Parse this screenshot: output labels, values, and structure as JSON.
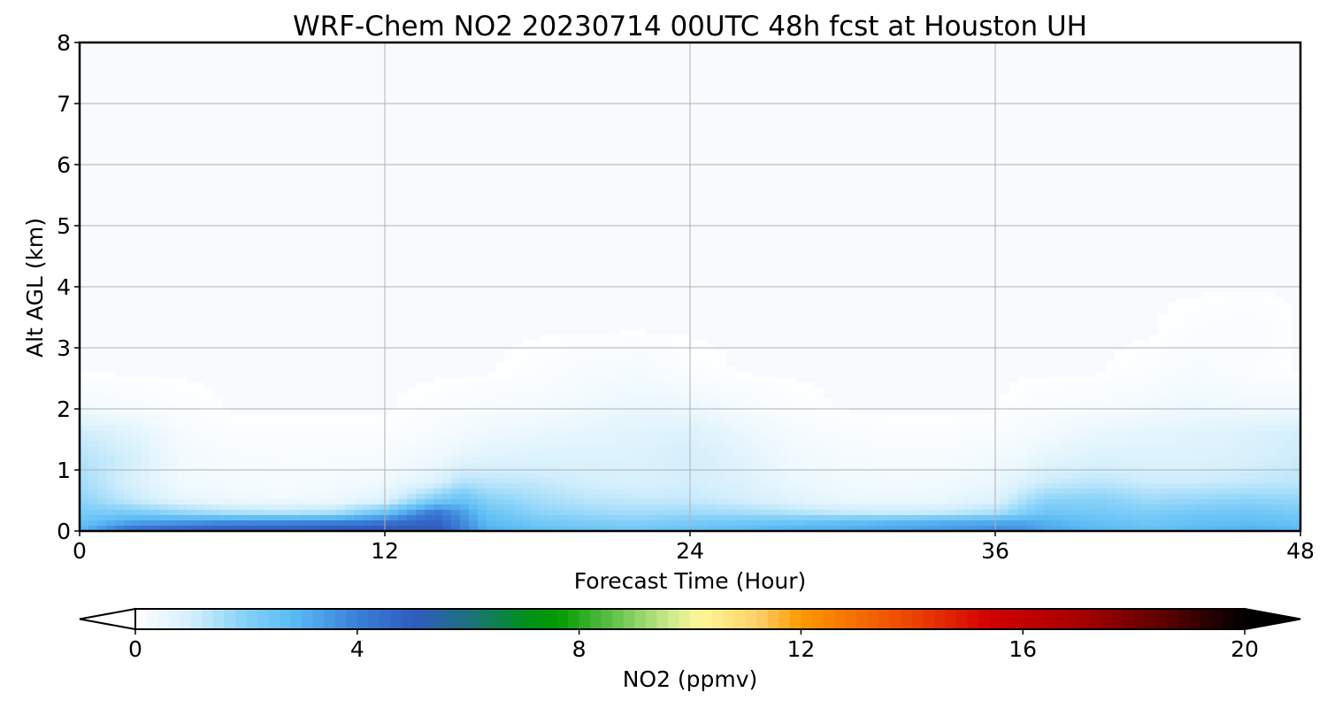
{
  "chart_data": {
    "type": "heatmap",
    "title": "WRF-Chem NO2  20230714 00UTC 48h fcst at Houston UH",
    "xlabel": "Forecast Time (Hour)",
    "ylabel": "Alt AGL (km)",
    "xlim": [
      0,
      48
    ],
    "ylim": [
      0,
      8
    ],
    "xticks": [
      0,
      12,
      24,
      36,
      48
    ],
    "yticks": [
      0,
      1,
      2,
      3,
      4,
      5,
      6,
      7,
      8
    ],
    "grid": true,
    "x_hours": [
      0,
      2,
      4,
      6,
      8,
      10,
      12,
      14,
      15,
      16,
      18,
      20,
      22,
      24,
      26,
      28,
      30,
      32,
      34,
      36,
      37,
      38,
      40,
      42,
      44,
      46,
      48
    ],
    "profiles": [
      {
        "altitude_km": 0.05,
        "values": [
          2.8,
          4.2,
          4.6,
          4.8,
          4.8,
          4.9,
          5.0,
          5.2,
          4.0,
          3.0,
          2.6,
          2.4,
          2.3,
          2.5,
          2.7,
          2.9,
          3.0,
          3.2,
          3.4,
          3.6,
          3.6,
          3.2,
          2.8,
          2.6,
          2.8,
          3.0,
          2.8
        ]
      },
      {
        "altitude_km": 0.15,
        "values": [
          2.5,
          3.2,
          3.4,
          3.6,
          3.7,
          3.8,
          4.2,
          4.8,
          3.8,
          2.8,
          2.3,
          2.1,
          2.0,
          2.2,
          2.3,
          2.4,
          2.6,
          2.8,
          3.0,
          3.1,
          3.2,
          3.0,
          2.6,
          2.4,
          2.6,
          2.7,
          2.5
        ]
      },
      {
        "altitude_km": 0.3,
        "values": [
          2.2,
          2.2,
          1.8,
          1.5,
          1.4,
          1.5,
          2.5,
          4.2,
          3.5,
          2.5,
          1.9,
          1.7,
          1.6,
          1.7,
          1.6,
          1.4,
          1.2,
          1.1,
          1.2,
          1.5,
          2.0,
          2.4,
          2.3,
          2.1,
          2.3,
          2.4,
          2.2
        ]
      },
      {
        "altitude_km": 0.5,
        "values": [
          1.9,
          1.2,
          0.6,
          0.4,
          0.35,
          0.4,
          0.8,
          2.2,
          2.6,
          2.0,
          1.6,
          1.3,
          1.2,
          1.2,
          1.0,
          0.7,
          0.5,
          0.45,
          0.5,
          0.8,
          1.4,
          1.9,
          2.0,
          1.7,
          1.8,
          1.9,
          1.8
        ]
      },
      {
        "altitude_km": 0.8,
        "values": [
          1.6,
          0.9,
          0.35,
          0.25,
          0.2,
          0.25,
          0.35,
          0.8,
          1.4,
          1.3,
          1.2,
          1.0,
          0.9,
          1.0,
          0.8,
          0.5,
          0.35,
          0.3,
          0.35,
          0.5,
          0.8,
          1.1,
          1.3,
          1.1,
          1.1,
          1.2,
          1.3
        ]
      },
      {
        "altitude_km": 1.2,
        "values": [
          1.4,
          1.0,
          0.3,
          0.2,
          0.15,
          0.15,
          0.2,
          0.4,
          0.6,
          0.7,
          0.8,
          0.8,
          0.8,
          1.0,
          0.7,
          0.35,
          0.25,
          0.2,
          0.2,
          0.3,
          0.4,
          0.6,
          0.8,
          0.8,
          0.8,
          0.9,
          1.1
        ]
      },
      {
        "altitude_km": 1.6,
        "values": [
          1.1,
          0.7,
          0.2,
          0.1,
          0.1,
          0.1,
          0.1,
          0.2,
          0.3,
          0.4,
          0.5,
          0.6,
          0.7,
          0.8,
          0.5,
          0.25,
          0.15,
          0.1,
          0.1,
          0.15,
          0.2,
          0.3,
          0.5,
          0.6,
          0.7,
          0.8,
          1.0
        ]
      },
      {
        "altitude_km": 2.0,
        "values": [
          0.3,
          0.2,
          0.1,
          0.05,
          0.05,
          0.05,
          0.05,
          0.1,
          0.15,
          0.2,
          0.25,
          0.35,
          0.5,
          0.45,
          0.25,
          0.1,
          0.05,
          0.05,
          0.05,
          0.05,
          0.1,
          0.15,
          0.2,
          0.3,
          0.4,
          0.35,
          0.35
        ]
      },
      {
        "altitude_km": 2.6,
        "values": [
          0.05,
          0.05,
          0.05,
          0.05,
          0.05,
          0.05,
          0.05,
          0.05,
          0.05,
          0.05,
          0.1,
          0.2,
          0.25,
          0.1,
          0.05,
          0.05,
          0.05,
          0.05,
          0.05,
          0.05,
          0.05,
          0.05,
          0.05,
          0.1,
          0.2,
          0.1,
          0.05
        ]
      },
      {
        "altitude_km": 3.3,
        "values": [
          0.05,
          0.05,
          0.05,
          0.05,
          0.05,
          0.05,
          0.05,
          0.05,
          0.05,
          0.05,
          0.05,
          0.05,
          0.05,
          0.05,
          0.05,
          0.05,
          0.05,
          0.05,
          0.05,
          0.05,
          0.05,
          0.05,
          0.05,
          0.05,
          0.1,
          0.15,
          0.05
        ]
      },
      {
        "altitude_km": 4.0,
        "values": [
          0.05,
          0.05,
          0.05,
          0.05,
          0.05,
          0.05,
          0.05,
          0.05,
          0.05,
          0.05,
          0.05,
          0.05,
          0.05,
          0.05,
          0.05,
          0.05,
          0.05,
          0.05,
          0.05,
          0.05,
          0.05,
          0.05,
          0.05,
          0.05,
          0.05,
          0.05,
          0.05
        ]
      },
      {
        "altitude_km": 8.0,
        "values": [
          0.03,
          0.03,
          0.03,
          0.03,
          0.03,
          0.03,
          0.03,
          0.03,
          0.03,
          0.03,
          0.03,
          0.03,
          0.03,
          0.03,
          0.03,
          0.03,
          0.03,
          0.03,
          0.03,
          0.03,
          0.03,
          0.03,
          0.03,
          0.03,
          0.03,
          0.03,
          0.03
        ]
      }
    ],
    "colorbar": {
      "label": "NO2  (ppmv)",
      "min": 0,
      "max": 20,
      "ticks": [
        0,
        4,
        8,
        12,
        16,
        20
      ],
      "extend": "both",
      "color_stops": [
        {
          "value": 0,
          "color": "#ffffff"
        },
        {
          "value": 1,
          "color": "#d4effc"
        },
        {
          "value": 2,
          "color": "#84d0f8"
        },
        {
          "value": 2.8,
          "color": "#5cbcf5"
        },
        {
          "value": 4,
          "color": "#3a7fd8"
        },
        {
          "value": 5,
          "color": "#305cc0"
        },
        {
          "value": 6,
          "color": "#1e7080"
        },
        {
          "value": 7,
          "color": "#008f20"
        },
        {
          "value": 7.6,
          "color": "#009a00"
        },
        {
          "value": 8.4,
          "color": "#4cb83a"
        },
        {
          "value": 9.6,
          "color": "#c8e88c"
        },
        {
          "value": 10.2,
          "color": "#fff799"
        },
        {
          "value": 11.2,
          "color": "#fed06a"
        },
        {
          "value": 12,
          "color": "#ff9900"
        },
        {
          "value": 14,
          "color": "#ec4400"
        },
        {
          "value": 15.4,
          "color": "#d20000"
        },
        {
          "value": 17,
          "color": "#a80000"
        },
        {
          "value": 18.6,
          "color": "#5a0000"
        },
        {
          "value": 20,
          "color": "#000000"
        }
      ],
      "under_color": "#ffffff",
      "over_color": "#000000"
    }
  }
}
